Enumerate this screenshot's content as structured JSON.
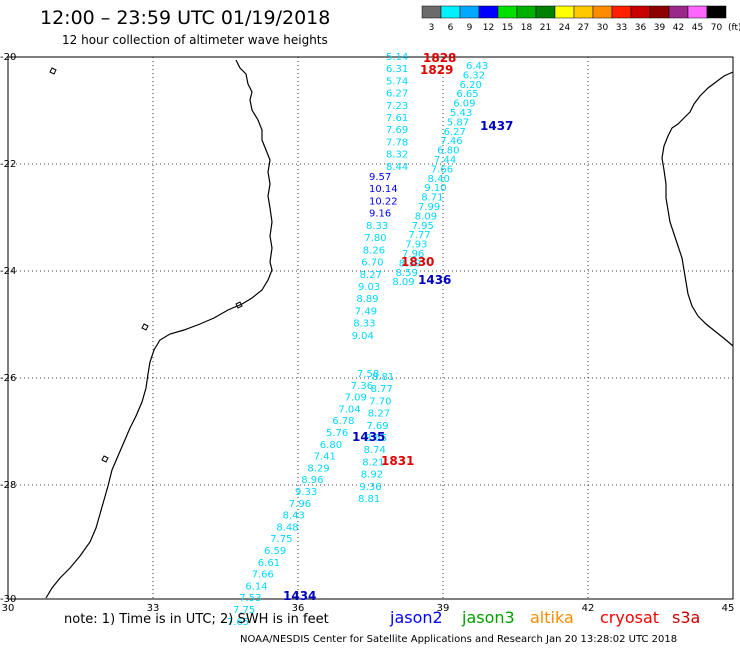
{
  "header": {
    "title": "12:00 – 23:59 UTC 01/19/2018",
    "subtitle": "12 hour collection of altimeter wave heights"
  },
  "scale": {
    "labels": [
      "3",
      "6",
      "9",
      "12",
      "15",
      "18",
      "21",
      "24",
      "27",
      "30",
      "33",
      "36",
      "39",
      "42",
      "45",
      "70"
    ],
    "unit": "(ft)",
    "colors": [
      "#6b6b6b",
      "#00f0ff",
      "#00a8ff",
      "#0000ff",
      "#00e000",
      "#00b000",
      "#008000",
      "#ffff00",
      "#ffc800",
      "#ff8c00",
      "#ff2000",
      "#c80000",
      "#8c0000",
      "#9a2a8a",
      "#ff66ff",
      "#000000"
    ]
  },
  "axes": {
    "lat_labels": [
      "-20",
      "-22",
      "-24",
      "-26",
      "-28",
      "-30"
    ],
    "lon_labels": [
      "30",
      "33",
      "36",
      "39",
      "42",
      "45"
    ]
  },
  "tracks": [
    {
      "satellite": "jason2",
      "color": "#00d8ff",
      "labels": [
        "5.14",
        "6.31",
        "5.74",
        "6.27",
        "7.23",
        "7.61",
        "7.69",
        "7.78",
        "8.32",
        "8.44"
      ]
    },
    {
      "satellite": "jason2",
      "color": "#0000ff",
      "labels": [
        "9.57",
        "10.14",
        "10.22",
        "9.16"
      ]
    },
    {
      "satellite": "jason2",
      "color": "#00d8ff",
      "labels": [
        "8.33",
        "7.80",
        "8.26",
        "6.70",
        "8.27",
        "9.03",
        "8.89",
        "7.49",
        "8.33",
        "9.04"
      ]
    },
    {
      "satellite": "jason2",
      "color": "#00d8ff",
      "labels": [
        "6.43",
        "6.32",
        "6.20",
        "6.65",
        "6.09",
        "5.43",
        "5.87",
        "6.27",
        "7.46",
        "6.80",
        "7.44",
        "7.66",
        "8.40",
        "9.10",
        "8.71",
        "7.99",
        "8.09",
        "7.95",
        "7.77",
        "7.93",
        "7.96",
        "8.39",
        "8.59",
        "8.09"
      ]
    },
    {
      "satellite": "jason2",
      "color": "#00d8ff",
      "labels": [
        "7.58",
        "7.36",
        "7.09",
        "7.04",
        "6.78",
        "5.76",
        "6.80",
        "7.41",
        "8.29",
        "8.96",
        "9.33",
        "7.96",
        "8.43",
        "8.48",
        "7.75",
        "6.59",
        "6.61",
        "7.66",
        "6.14",
        "7.53",
        "7.75",
        "7.65"
      ]
    },
    {
      "satellite": "jason2",
      "color": "#00d8ff",
      "labels": [
        "8.81",
        "8.77",
        "7.70",
        "8.27",
        "7.69",
        "8.65",
        "8.74",
        "8.21",
        "8.92",
        "9.36",
        "8.81"
      ]
    }
  ],
  "time_marks": [
    {
      "label": "1828",
      "satellite": "cryosat"
    },
    {
      "label": "1829",
      "satellite": "cryosat"
    },
    {
      "label": "1830",
      "satellite": "cryosat"
    },
    {
      "label": "1831",
      "satellite": "cryosat"
    },
    {
      "label": "1437",
      "satellite": "jason2"
    },
    {
      "label": "1436",
      "satellite": "jason2"
    },
    {
      "label": "1435",
      "satellite": "jason2"
    },
    {
      "label": "1434",
      "satellite": "jason2"
    }
  ],
  "footer": {
    "note": "note:  1) Time is in UTC;  2) SWH is in feet",
    "satellites": [
      {
        "name": "jason2",
        "color": "#0000ff"
      },
      {
        "name": "jason3",
        "color": "#00a000"
      },
      {
        "name": "altika",
        "color": "#ff8c00"
      },
      {
        "name": "cryosat",
        "color": "#ff0000"
      },
      {
        "name": "s3a",
        "color": "#c80000"
      }
    ],
    "credit": "NOAA/NESDIS Center for Satellite Applications and Research    Jan 20 13:28:02 UTC 2018"
  }
}
